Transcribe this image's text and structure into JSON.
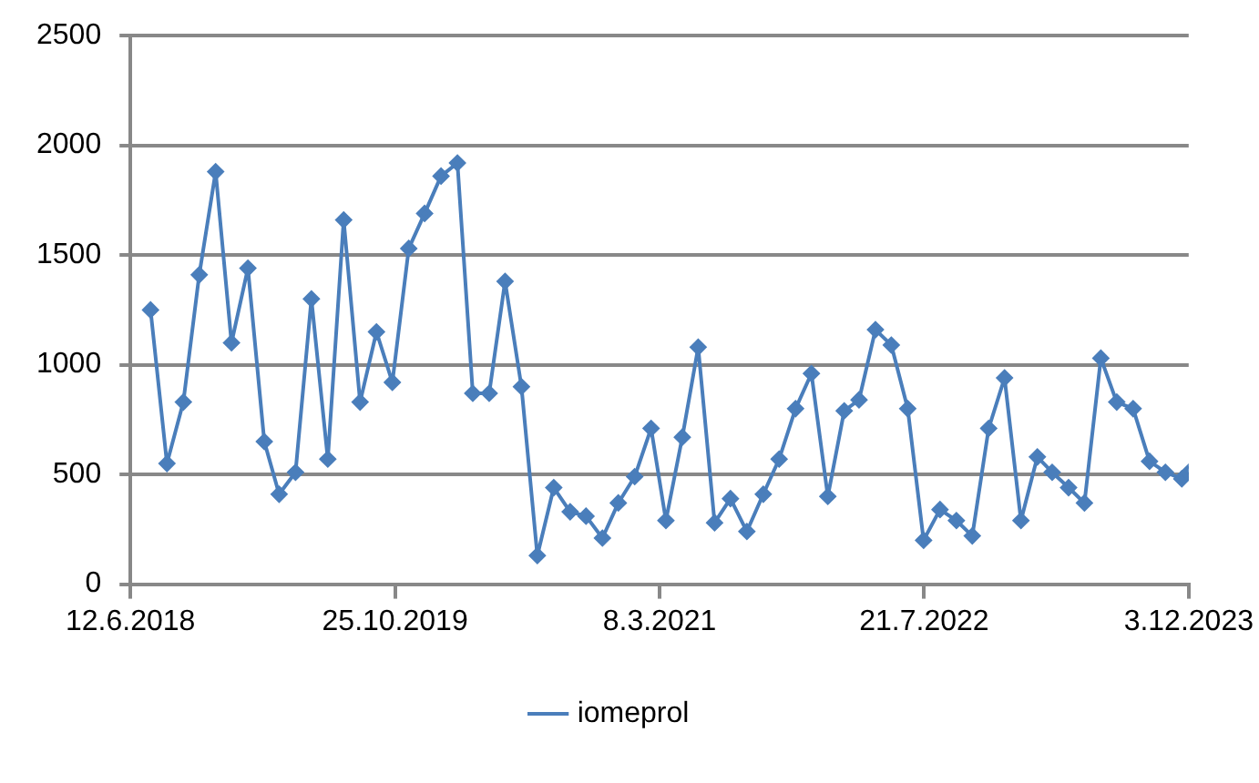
{
  "chart_data": {
    "type": "line",
    "x": [
      "2018-07-20",
      "2018-08-20",
      "2018-09-20",
      "2018-10-20",
      "2018-11-20",
      "2018-12-20",
      "2019-01-20",
      "2019-02-20",
      "2019-03-20",
      "2019-04-20",
      "2019-05-20",
      "2019-06-20",
      "2019-07-20",
      "2019-08-20",
      "2019-09-20",
      "2019-10-20",
      "2019-11-20",
      "2019-12-20",
      "2020-01-20",
      "2020-02-20",
      "2020-03-20",
      "2020-04-20",
      "2020-05-20",
      "2020-06-20",
      "2020-07-20",
      "2020-08-20",
      "2020-09-20",
      "2020-10-20",
      "2020-11-20",
      "2020-12-20",
      "2021-01-20",
      "2021-02-20",
      "2021-03-20",
      "2021-04-20",
      "2021-05-20",
      "2021-06-20",
      "2021-07-20",
      "2021-08-20",
      "2021-09-20",
      "2021-10-20",
      "2021-11-20",
      "2021-12-20",
      "2022-01-20",
      "2022-02-20",
      "2022-03-20",
      "2022-04-20",
      "2022-05-20",
      "2022-06-20",
      "2022-07-20",
      "2022-08-20",
      "2022-09-20",
      "2022-10-20",
      "2022-11-20",
      "2022-12-20",
      "2023-01-20",
      "2023-02-20",
      "2023-03-20",
      "2023-04-20",
      "2023-05-20",
      "2023-06-20",
      "2023-07-20",
      "2023-08-20",
      "2023-09-20",
      "2023-10-20",
      "2023-11-20",
      "2023-12-03"
    ],
    "series": [
      {
        "name": "iomeprol",
        "color": "#4a7ebb",
        "values": [
          1250,
          550,
          830,
          1410,
          1880,
          1100,
          1440,
          650,
          410,
          510,
          1300,
          570,
          1660,
          830,
          1150,
          920,
          1530,
          1690,
          1860,
          1920,
          870,
          870,
          1380,
          900,
          130,
          440,
          330,
          310,
          210,
          370,
          490,
          710,
          290,
          670,
          1080,
          280,
          390,
          240,
          410,
          570,
          800,
          960,
          400,
          790,
          840,
          1160,
          1090,
          800,
          200,
          340,
          290,
          220,
          710,
          940,
          290,
          580,
          510,
          440,
          370,
          1030,
          830,
          800,
          560,
          510,
          480,
          510
        ]
      }
    ],
    "xlim": [
      "2018-06-12",
      "2023-12-03"
    ],
    "xticks": [
      {
        "value": "2018-06-12",
        "label": "12.6.2018"
      },
      {
        "value": "2019-10-25",
        "label": "25.10.2019"
      },
      {
        "value": "2021-03-08",
        "label": "8.3.2021"
      },
      {
        "value": "2022-07-21",
        "label": "21.7.2022"
      },
      {
        "value": "2023-12-03",
        "label": "3.12.2023"
      }
    ],
    "ylim": [
      0,
      2500
    ],
    "yticks": [
      0,
      500,
      1000,
      1500,
      2000,
      2500
    ],
    "grid": "y",
    "legend": "bottom",
    "marker": "diamond",
    "line_style": "solid"
  }
}
